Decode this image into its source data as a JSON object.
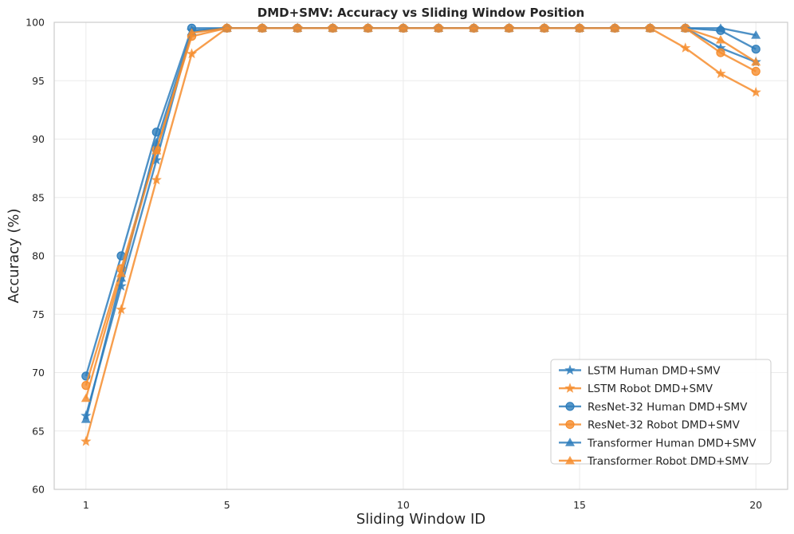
{
  "chart_data": {
    "type": "line",
    "title": "DMD+SMV: Accuracy vs Sliding Window Position",
    "xlabel": "Sliding Window ID",
    "ylabel": "Accuracy (%)",
    "xlim": [
      0.1,
      20.9
    ],
    "ylim": [
      60,
      100
    ],
    "xticks": [
      1,
      5,
      10,
      15,
      20
    ],
    "yticks": [
      60,
      65,
      70,
      75,
      80,
      85,
      90,
      95,
      100
    ],
    "grid": true,
    "legend_position": "lower-right",
    "x": [
      1,
      2,
      3,
      4,
      5,
      6,
      7,
      8,
      9,
      10,
      11,
      12,
      13,
      14,
      15,
      16,
      17,
      18,
      19,
      20
    ],
    "colors": {
      "human": "#2f7ebc",
      "robot": "#f68d2e"
    },
    "series": [
      {
        "name": "LSTM Human DMD+SMV",
        "group": "human",
        "marker": "star",
        "values": [
          66.3,
          77.4,
          88.2,
          99.3,
          99.5,
          99.5,
          99.5,
          99.5,
          99.5,
          99.5,
          99.5,
          99.5,
          99.5,
          99.5,
          99.5,
          99.5,
          99.5,
          99.5,
          97.8,
          96.6
        ]
      },
      {
        "name": "LSTM Robot DMD+SMV",
        "group": "robot",
        "marker": "star",
        "values": [
          64.1,
          75.4,
          86.5,
          97.3,
          99.5,
          99.5,
          99.5,
          99.5,
          99.5,
          99.5,
          99.5,
          99.5,
          99.5,
          99.5,
          99.5,
          99.5,
          99.5,
          97.8,
          95.6,
          94.0
        ]
      },
      {
        "name": "ResNet-32 Human DMD+SMV",
        "group": "human",
        "marker": "circle",
        "values": [
          69.7,
          80.0,
          90.6,
          99.5,
          99.5,
          99.5,
          99.5,
          99.5,
          99.5,
          99.5,
          99.5,
          99.5,
          99.5,
          99.5,
          99.5,
          99.5,
          99.5,
          99.5,
          99.3,
          97.7
        ]
      },
      {
        "name": "ResNet-32 Robot DMD+SMV",
        "group": "robot",
        "marker": "circle",
        "values": [
          68.9,
          78.9,
          89.1,
          98.8,
          99.5,
          99.5,
          99.5,
          99.5,
          99.5,
          99.5,
          99.5,
          99.5,
          99.5,
          99.5,
          99.5,
          99.5,
          99.5,
          99.5,
          97.4,
          95.8
        ]
      },
      {
        "name": "Transformer Human DMD+SMV",
        "group": "human",
        "marker": "triangle",
        "values": [
          66.0,
          78.1,
          89.7,
          99.2,
          99.5,
          99.5,
          99.5,
          99.5,
          99.5,
          99.5,
          99.5,
          99.5,
          99.5,
          99.5,
          99.5,
          99.5,
          99.5,
          99.5,
          99.5,
          98.9
        ]
      },
      {
        "name": "Transformer Robot DMD+SMV",
        "group": "robot",
        "marker": "triangle",
        "values": [
          67.8,
          78.5,
          89.0,
          99.1,
          99.5,
          99.5,
          99.5,
          99.5,
          99.5,
          99.5,
          99.5,
          99.5,
          99.5,
          99.5,
          99.5,
          99.5,
          99.5,
          99.5,
          98.5,
          96.6
        ]
      }
    ]
  }
}
